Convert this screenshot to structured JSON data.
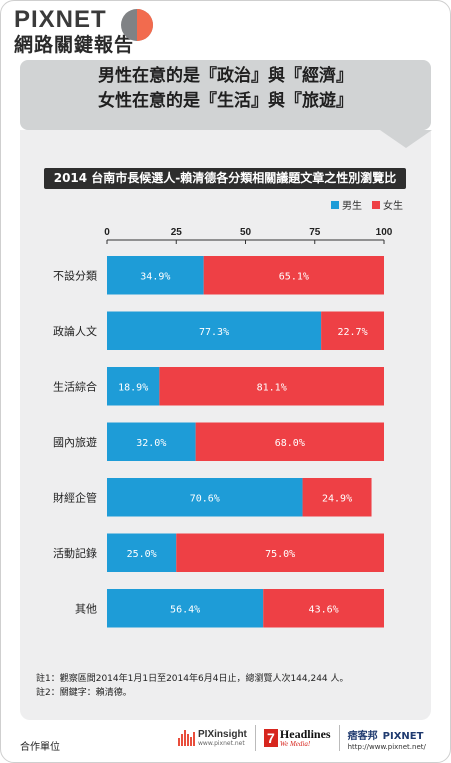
{
  "brand": {
    "title": "PIXNET",
    "subtitle": "網路關鍵報告",
    "colors": [
      "#f26b4e",
      "#808285"
    ]
  },
  "headline": {
    "line1": "男性在意的是『政治』與『經濟』",
    "line2": "女性在意的是『生活』與『旅遊』"
  },
  "chart_data": {
    "type": "bar",
    "orientation": "horizontal",
    "stacked": true,
    "title": "2014 台南市長候選人-賴清德各分類相關議題文章之性別瀏覽比",
    "categories": [
      "不設分類",
      "政論人文",
      "生活綜合",
      "國內旅遊",
      "財經企管",
      "活動記錄",
      "其他"
    ],
    "series": [
      {
        "name": "男生",
        "color": "#1e9cd7",
        "values": [
          34.9,
          77.3,
          18.9,
          32.0,
          70.6,
          25.0,
          56.4
        ],
        "labels": [
          "34.9%",
          "77.3%",
          "18.9%",
          "32.0%",
          "70.6%",
          "25.0%",
          "56.4%"
        ]
      },
      {
        "name": "女生",
        "color": "#ee4045",
        "values": [
          65.1,
          22.7,
          81.1,
          68.0,
          24.9,
          75.0,
          43.6
        ],
        "labels": [
          "65.1%",
          "22.7%",
          "81.1%",
          "68.0%",
          "24.9%",
          "75.0%",
          "43.6%"
        ]
      }
    ],
    "xlim": [
      0,
      100
    ],
    "xticks": [
      "0",
      "25",
      "50",
      "75",
      "100"
    ],
    "legend_position": "top-right",
    "grid": false
  },
  "notes": {
    "note1": "註1：觀察區間2014年1月1日至2014年6月4日止，總瀏覽人次144,244 人。",
    "note2": "註2：關鍵字：賴清德。"
  },
  "footer": {
    "partner_label": "合作單位",
    "pixinsight": "PIXinsight",
    "pixinsight_url": "www.pixnet.net",
    "headlines_num": "7",
    "headlines_name": "Headlines",
    "headlines_tag": "We Media!",
    "pixnet_cn": "痞客邦",
    "pixnet_name": "PIXNET",
    "pixnet_url": "http://www.pixnet.net/"
  }
}
